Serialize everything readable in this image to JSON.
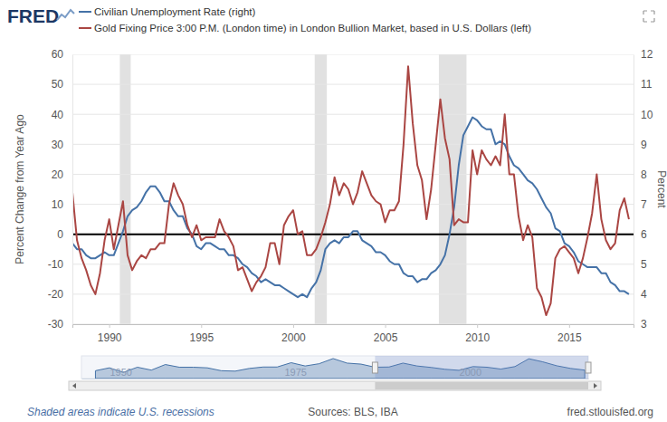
{
  "page": {
    "logo": "FRED",
    "note": "Shaded areas indicate U.S. recessions",
    "source": "Sources: BLS, IBA",
    "url": "fred.stlouisfed.org"
  },
  "chart_data": [
    {
      "type": "line",
      "y_label": "Percent Change from Year Ago",
      "y2_label": "Percent",
      "x": [
        1988,
        1988.25,
        1988.5,
        1988.75,
        1989,
        1989.25,
        1989.5,
        1989.75,
        1990,
        1990.25,
        1990.5,
        1990.75,
        1991,
        1991.25,
        1991.5,
        1991.75,
        1992,
        1992.25,
        1992.5,
        1992.75,
        1993,
        1993.25,
        1993.5,
        1993.75,
        1994,
        1994.25,
        1994.5,
        1994.75,
        1995,
        1995.25,
        1995.5,
        1995.75,
        1996,
        1996.25,
        1996.5,
        1996.75,
        1997,
        1997.25,
        1997.5,
        1997.75,
        1998,
        1998.25,
        1998.5,
        1998.75,
        1999,
        1999.25,
        1999.5,
        1999.75,
        2000,
        2000.25,
        2000.5,
        2000.75,
        2001,
        2001.25,
        2001.5,
        2001.75,
        2002,
        2002.25,
        2002.5,
        2002.75,
        2003,
        2003.25,
        2003.5,
        2003.75,
        2004,
        2004.25,
        2004.5,
        2004.75,
        2005,
        2005.25,
        2005.5,
        2005.75,
        2006,
        2006.25,
        2006.5,
        2006.75,
        2007,
        2007.25,
        2007.5,
        2007.75,
        2008,
        2008.25,
        2008.5,
        2008.75,
        2009,
        2009.25,
        2009.5,
        2009.75,
        2010,
        2010.25,
        2010.5,
        2010.75,
        2011,
        2011.25,
        2011.5,
        2011.75,
        2012,
        2012.25,
        2012.5,
        2012.75,
        2013,
        2013.25,
        2013.5,
        2013.75,
        2014,
        2014.25,
        2014.5,
        2014.75,
        2015,
        2015.25,
        2015.5,
        2015.75,
        2016,
        2016.25,
        2016.5,
        2016.75,
        2017,
        2017.25,
        2017.5,
        2017.75,
        2018,
        2018.25
      ],
      "series": [
        {
          "name": "Civilian Unemployment Rate (right)",
          "color": "#4572a7",
          "axis": "y2",
          "values": [
            5.7,
            5.5,
            5.5,
            5.3,
            5.2,
            5.2,
            5.3,
            5.4,
            5.3,
            5.3,
            5.7,
            6.1,
            6.6,
            6.8,
            6.9,
            7.1,
            7.4,
            7.6,
            7.6,
            7.4,
            7.1,
            7.1,
            6.8,
            6.6,
            6.6,
            6.2,
            6.0,
            5.6,
            5.5,
            5.7,
            5.7,
            5.6,
            5.5,
            5.5,
            5.3,
            5.3,
            5.2,
            5.0,
            4.9,
            4.7,
            4.6,
            4.4,
            4.5,
            4.4,
            4.3,
            4.3,
            4.2,
            4.1,
            4.0,
            3.9,
            4.0,
            3.9,
            4.2,
            4.4,
            4.8,
            5.5,
            5.7,
            5.8,
            5.7,
            5.9,
            5.9,
            6.1,
            6.1,
            5.8,
            5.7,
            5.6,
            5.4,
            5.4,
            5.3,
            5.1,
            5.0,
            5.0,
            4.7,
            4.6,
            4.6,
            4.4,
            4.5,
            4.5,
            4.7,
            4.8,
            5.0,
            5.3,
            6.0,
            6.9,
            8.3,
            9.3,
            9.6,
            9.9,
            9.8,
            9.6,
            9.5,
            9.5,
            9.0,
            9.1,
            9.0,
            8.6,
            8.3,
            8.2,
            8.0,
            7.8,
            7.7,
            7.5,
            7.2,
            6.9,
            6.7,
            6.2,
            6.1,
            5.7,
            5.6,
            5.4,
            5.1,
            5.0,
            4.9,
            4.9,
            4.9,
            4.7,
            4.7,
            4.4,
            4.3,
            4.1,
            4.1,
            4.0
          ]
        },
        {
          "name": "Gold Fixing Price 3:00 P.M. (London time) in London Bullion Market, based in U.S. Dollars (left)",
          "color": "#aa4643",
          "values": [
            14,
            -2,
            -8,
            -12,
            -17,
            -20,
            -13,
            -2,
            5,
            -5,
            3,
            11,
            -7,
            -12,
            -9,
            -7,
            -8,
            -5,
            -5,
            -3,
            -3,
            10,
            17,
            13,
            10,
            3,
            -1,
            3,
            -2,
            -1,
            -1,
            -1,
            5,
            1,
            -1,
            -4,
            -12,
            -11,
            -15,
            -19,
            -16,
            -14,
            -11,
            -3,
            -3,
            -10,
            3,
            6,
            8,
            0,
            1,
            -7,
            -7,
            -5,
            -1,
            4,
            10,
            19,
            13,
            17,
            15,
            10,
            14,
            21,
            17,
            13,
            11,
            10,
            4,
            8,
            8,
            11,
            30,
            56,
            37,
            23,
            18,
            5,
            15,
            30,
            45,
            32,
            25,
            3,
            5,
            4,
            4,
            28,
            20,
            28,
            25,
            23,
            26,
            23,
            40,
            20,
            20,
            6,
            -2,
            3,
            -1,
            -18,
            -21,
            -27,
            -23,
            -8,
            -5,
            -4,
            -6,
            -8,
            -13,
            -8,
            -1,
            7,
            20,
            5,
            -2,
            -5,
            -3,
            8,
            12,
            5
          ]
        }
      ],
      "xlim": [
        1988,
        2018.5
      ],
      "xticks": [
        1990,
        1995,
        2000,
        2005,
        2010,
        2015
      ],
      "ylim": [
        -30,
        60
      ],
      "yticks": [
        -30,
        -20,
        -10,
        0,
        10,
        20,
        30,
        40,
        50,
        60
      ],
      "y2lim": [
        3,
        12
      ],
      "y2ticks": [
        3,
        4,
        5,
        6,
        7,
        8,
        9,
        10,
        11,
        12
      ],
      "baseline": 0,
      "recessions": [
        [
          1990.58,
          1991.17
        ],
        [
          2001.17,
          2001.83
        ],
        [
          2007.92,
          2009.42
        ]
      ],
      "grid": true
    },
    {
      "type": "area",
      "x": [
        1948,
        1950,
        1952,
        1954,
        1956,
        1958,
        1960,
        1962,
        1964,
        1966,
        1968,
        1970,
        1972,
        1974,
        1976,
        1978,
        1980,
        1982,
        1984,
        1986,
        1988,
        1990,
        1992,
        1994,
        1996,
        1998,
        2000,
        2002,
        2004,
        2006,
        2008,
        2010,
        2012,
        2014,
        2016,
        2018
      ],
      "values": [
        3.8,
        5.2,
        3.0,
        5.5,
        4.1,
        6.8,
        5.5,
        5.5,
        5.2,
        3.8,
        3.6,
        4.9,
        5.6,
        5.6,
        7.7,
        6.1,
        7.2,
        9.7,
        7.5,
        7.0,
        5.5,
        5.6,
        7.5,
        6.1,
        5.4,
        4.5,
        4.0,
        5.8,
        5.5,
        4.6,
        5.8,
        9.6,
        8.1,
        6.2,
        4.9,
        4.1
      ],
      "color": "#4572a7",
      "xlim": [
        1946,
        2018.5
      ],
      "xticks": [
        1950,
        1975,
        2000
      ],
      "ylim": [
        0,
        11
      ],
      "tick_labels": "x"
    }
  ]
}
